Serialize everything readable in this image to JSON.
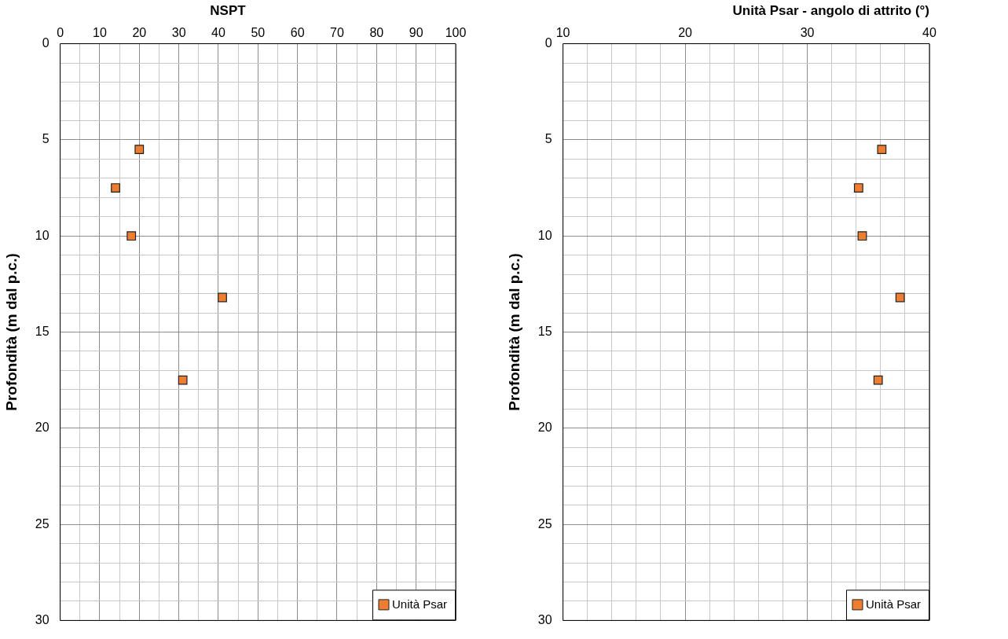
{
  "chart_data": [
    {
      "type": "scatter",
      "title": "NSPT",
      "ylabel": "Profondità (m dal p.c.)",
      "series": [
        {
          "name": "Unità Psar",
          "color": "#ed7d31",
          "x": [
            20,
            14,
            18,
            41,
            31
          ],
          "values": [
            5.5,
            7.5,
            10,
            13.2,
            17.5
          ]
        }
      ],
      "xlim": [
        0,
        100
      ],
      "xticks": [
        0,
        {
          "value": 5,
          "label": null
        },
        10,
        {
          "value": 15,
          "label": null
        },
        20,
        {
          "value": 25,
          "label": null
        },
        30,
        {
          "value": 35,
          "label": null
        },
        40,
        {
          "value": 45,
          "label": null
        },
        50,
        {
          "value": 55,
          "label": null
        },
        60,
        {
          "value": 65,
          "label": null
        },
        70,
        {
          "value": 75,
          "label": null
        },
        80,
        {
          "value": 85,
          "label": null
        },
        90,
        {
          "value": 95,
          "label": null
        },
        100
      ],
      "ylim": [
        30,
        0
      ],
      "yticks": [
        0,
        {
          "value": 1,
          "label": null
        },
        {
          "value": 2,
          "label": null
        },
        {
          "value": 3,
          "label": null
        },
        {
          "value": 4,
          "label": null
        },
        5,
        {
          "value": 6,
          "label": null
        },
        {
          "value": 7,
          "label": null
        },
        {
          "value": 8,
          "label": null
        },
        {
          "value": 9,
          "label": null
        },
        10,
        {
          "value": 11,
          "label": null
        },
        {
          "value": 12,
          "label": null
        },
        {
          "value": 13,
          "label": null
        },
        {
          "value": 14,
          "label": null
        },
        15,
        {
          "value": 16,
          "label": null
        },
        {
          "value": 17,
          "label": null
        },
        {
          "value": 18,
          "label": null
        },
        {
          "value": 19,
          "label": null
        },
        20,
        {
          "value": 21,
          "label": null
        },
        {
          "value": 22,
          "label": null
        },
        {
          "value": 23,
          "label": null
        },
        {
          "value": 24,
          "label": null
        },
        25,
        {
          "value": 26,
          "label": null
        },
        {
          "value": 27,
          "label": null
        },
        {
          "value": 28,
          "label": null
        },
        {
          "value": 29,
          "label": null
        },
        30
      ],
      "grid": true,
      "legend": "bottom right",
      "marker": "square"
    },
    {
      "type": "scatter",
      "title": "Unità Psar - angolo di attrito (°)",
      "ylabel": "Profondità (m dal p.c.)",
      "series": [
        {
          "name": "Unità Psar",
          "color": "#ed7d31",
          "x": [
            36.1,
            34.2,
            34.5,
            37.6,
            35.8
          ],
          "values": [
            5.5,
            7.5,
            10,
            13.2,
            17.5
          ]
        }
      ],
      "xlim": [
        10,
        40
      ],
      "xticks": [
        10,
        {
          "value": 12,
          "label": null
        },
        {
          "value": 14,
          "label": null
        },
        {
          "value": 16,
          "label": null
        },
        {
          "value": 18,
          "label": null
        },
        20,
        {
          "value": 22,
          "label": null
        },
        {
          "value": 24,
          "label": null
        },
        {
          "value": 26,
          "label": null
        },
        {
          "value": 28,
          "label": null
        },
        30,
        {
          "value": 32,
          "label": null
        },
        {
          "value": 34,
          "label": null
        },
        {
          "value": 36,
          "label": null
        },
        {
          "value": 38,
          "label": null
        },
        40
      ],
      "ylim": [
        30,
        0
      ],
      "yticks": [
        0,
        {
          "value": 1,
          "label": null
        },
        {
          "value": 2,
          "label": null
        },
        {
          "value": 3,
          "label": null
        },
        {
          "value": 4,
          "label": null
        },
        5,
        {
          "value": 6,
          "label": null
        },
        {
          "value": 7,
          "label": null
        },
        {
          "value": 8,
          "label": null
        },
        {
          "value": 9,
          "label": null
        },
        10,
        {
          "value": 11,
          "label": null
        },
        {
          "value": 12,
          "label": null
        },
        {
          "value": 13,
          "label": null
        },
        {
          "value": 14,
          "label": null
        },
        15,
        {
          "value": 16,
          "label": null
        },
        {
          "value": 17,
          "label": null
        },
        {
          "value": 18,
          "label": null
        },
        {
          "value": 19,
          "label": null
        },
        20,
        {
          "value": 21,
          "label": null
        },
        {
          "value": 22,
          "label": null
        },
        {
          "value": 23,
          "label": null
        },
        {
          "value": 24,
          "label": null
        },
        25,
        {
          "value": 26,
          "label": null
        },
        {
          "value": 27,
          "label": null
        },
        {
          "value": 28,
          "label": null
        },
        {
          "value": 29,
          "label": null
        },
        30
      ],
      "grid": true,
      "legend": "bottom right",
      "marker": "square"
    }
  ]
}
